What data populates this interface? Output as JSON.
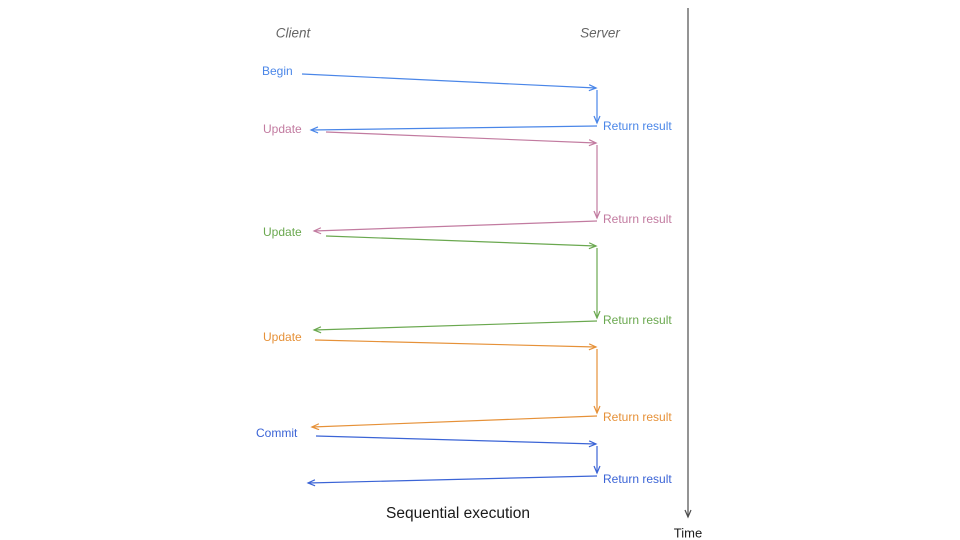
{
  "diagram": {
    "client_header": "Client",
    "server_header": "Server",
    "title": "Sequential execution",
    "time_axis_label": "Time",
    "colors": {
      "header_text": "#666666",
      "time_axis": "#4d4d4d",
      "title_text": "#1a1a1a"
    },
    "sequences": [
      {
        "request_label": "Begin",
        "response_label": "Return result",
        "color": "#4a86e8"
      },
      {
        "request_label": "Update",
        "response_label": "Return result",
        "color": "#c27ba0"
      },
      {
        "request_label": "Update",
        "response_label": "Return result",
        "color": "#6aa84f"
      },
      {
        "request_label": "Update",
        "response_label": "Return result",
        "color": "#e69138"
      },
      {
        "request_label": "Commit",
        "response_label": "Return result",
        "color": "#3b64d6"
      }
    ]
  }
}
